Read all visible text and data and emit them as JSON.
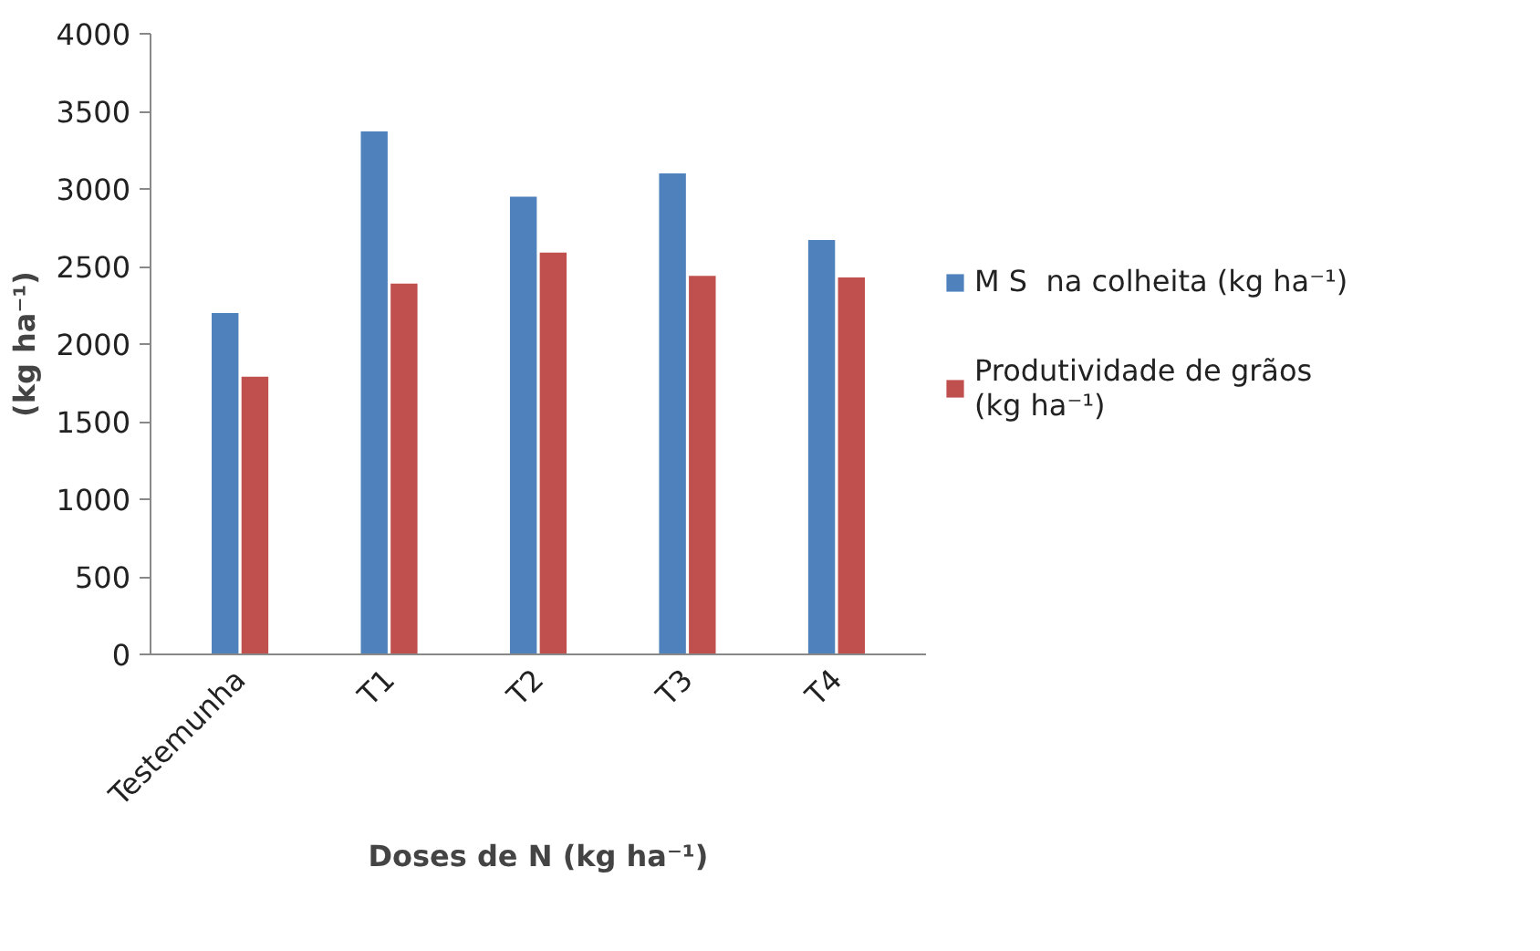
{
  "chart_data": {
    "type": "bar",
    "xlabel": "Doses de N (kg ha⁻¹)",
    "ylabel": "(kg ha⁻¹)",
    "categories": [
      "Testemunha",
      "T1",
      "T2",
      "T3",
      "T4"
    ],
    "series": [
      {
        "name": "M S  na colheita (kg ha⁻¹)",
        "color": "#4f81bd",
        "values": [
          2200,
          3370,
          2950,
          3100,
          2670
        ]
      },
      {
        "name": "Produtividade de grãos\n(kg ha⁻¹)",
        "color": "#c0504d",
        "values": [
          1790,
          2390,
          2590,
          2440,
          2430
        ]
      }
    ],
    "ylim": [
      0,
      4000
    ],
    "yticks": [
      0,
      500,
      1000,
      1500,
      2000,
      2500,
      3000,
      3500,
      4000
    ],
    "grid": false,
    "legend": "right"
  }
}
